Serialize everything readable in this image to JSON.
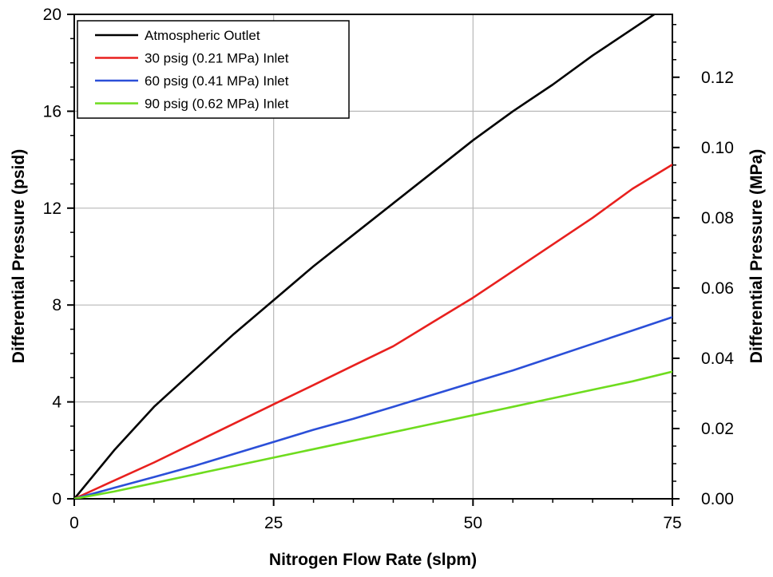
{
  "chart_data": {
    "type": "line",
    "title": "",
    "xlabel": "Nitrogen Flow Rate (slpm)",
    "ylabel_left": "Differential Pressure (psid)",
    "ylabel_right": "Differential Pressure (MPa)",
    "xlim": [
      0,
      75
    ],
    "ylim_left": [
      0,
      20
    ],
    "ylim_right_approx": [
      0,
      0.1379
    ],
    "x_ticks": [
      "0",
      "25",
      "50",
      "75"
    ],
    "y_ticks_left": [
      "0",
      "4",
      "8",
      "12",
      "16",
      "20"
    ],
    "y_ticks_right": [
      "0.00",
      "0.02",
      "0.04",
      "0.06",
      "0.08",
      "0.10",
      "0.12"
    ],
    "grid": true,
    "legend_position": "top-left",
    "series": [
      {
        "name": "Atmospheric Outlet",
        "color": "#000000",
        "x": [
          0,
          5,
          10,
          15,
          20,
          25,
          30,
          35,
          40,
          45,
          50,
          55,
          60,
          65,
          70,
          75
        ],
        "y": [
          0,
          2.0,
          3.8,
          5.3,
          6.8,
          8.2,
          9.6,
          10.9,
          12.2,
          13.5,
          14.8,
          16.0,
          17.1,
          18.3,
          19.4,
          20.5
        ]
      },
      {
        "name": "30 psig (0.21 MPa) Inlet",
        "color": "#e8201e",
        "x": [
          0,
          5,
          10,
          15,
          20,
          25,
          30,
          35,
          40,
          45,
          50,
          55,
          60,
          65,
          70,
          75
        ],
        "y": [
          0,
          0.75,
          1.5,
          2.3,
          3.1,
          3.9,
          4.7,
          5.5,
          6.3,
          7.3,
          8.3,
          9.4,
          10.5,
          11.6,
          12.8,
          13.8
        ]
      },
      {
        "name": "60 psig (0.41 MPa) Inlet",
        "color": "#2b4fd8",
        "x": [
          0,
          5,
          10,
          15,
          20,
          25,
          30,
          35,
          40,
          45,
          50,
          55,
          60,
          65,
          70,
          75
        ],
        "y": [
          0,
          0.45,
          0.9,
          1.35,
          1.85,
          2.35,
          2.85,
          3.3,
          3.8,
          4.3,
          4.8,
          5.3,
          5.85,
          6.4,
          6.95,
          7.5
        ]
      },
      {
        "name": "90 psig (0.62 MPa) Inlet",
        "color": "#6edc1e",
        "x": [
          0,
          5,
          10,
          15,
          20,
          25,
          30,
          35,
          40,
          45,
          50,
          55,
          60,
          65,
          70,
          75
        ],
        "y": [
          0,
          0.3,
          0.65,
          1.0,
          1.35,
          1.7,
          2.05,
          2.4,
          2.75,
          3.1,
          3.45,
          3.8,
          4.15,
          4.5,
          4.85,
          5.25
        ]
      }
    ]
  }
}
